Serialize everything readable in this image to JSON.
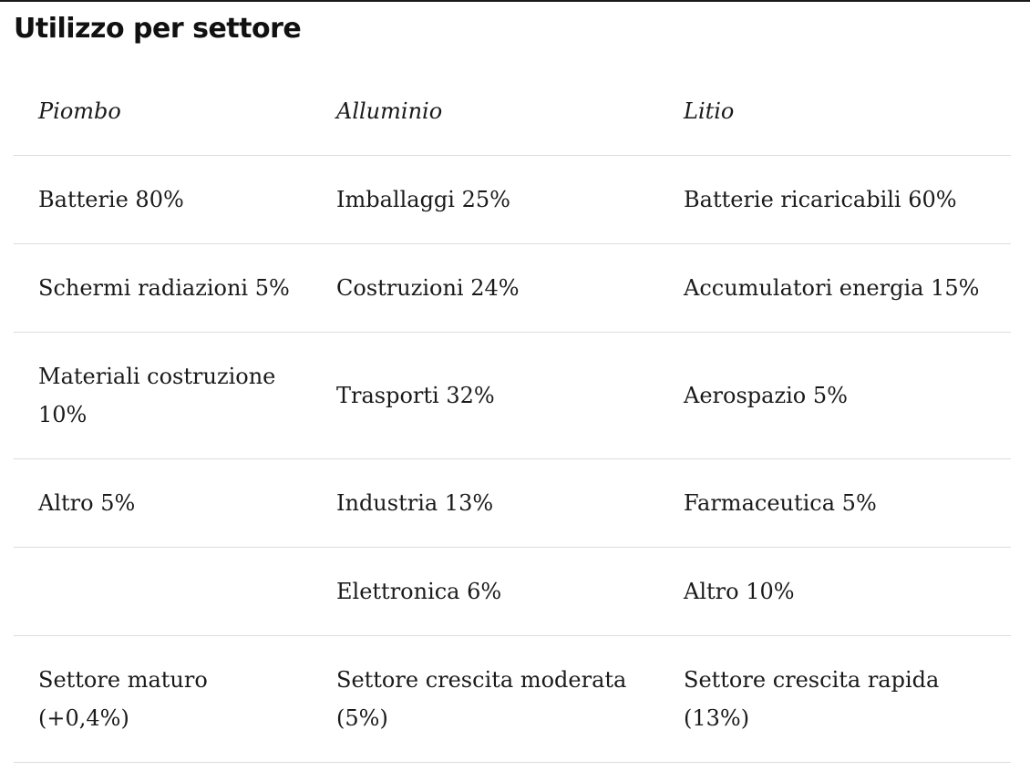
{
  "title": "Utilizzo per settore",
  "headers": [
    "Piombo",
    "Alluminio",
    "Litio"
  ],
  "rows": [
    [
      "Batterie 80%",
      "Imballaggi 25%",
      "Batterie ricaricabili 60%"
    ],
    [
      "Schermi radiazioni 5%",
      "Costruzioni 24%",
      "Accumulatori energia 15%"
    ],
    [
      "Materiali costruzione 10%",
      "Trasporti 32%",
      "Aerospazio 5%"
    ],
    [
      "Altro 5%",
      "Industria 13%",
      "Farmaceutica 5%"
    ],
    [
      "",
      "Elettronica 6%",
      "Altro 10%"
    ],
    [
      "Settore maturo (+0,4%)",
      "Settore crescita moderata (5%)",
      "Settore crescita rapida (13%)"
    ]
  ]
}
